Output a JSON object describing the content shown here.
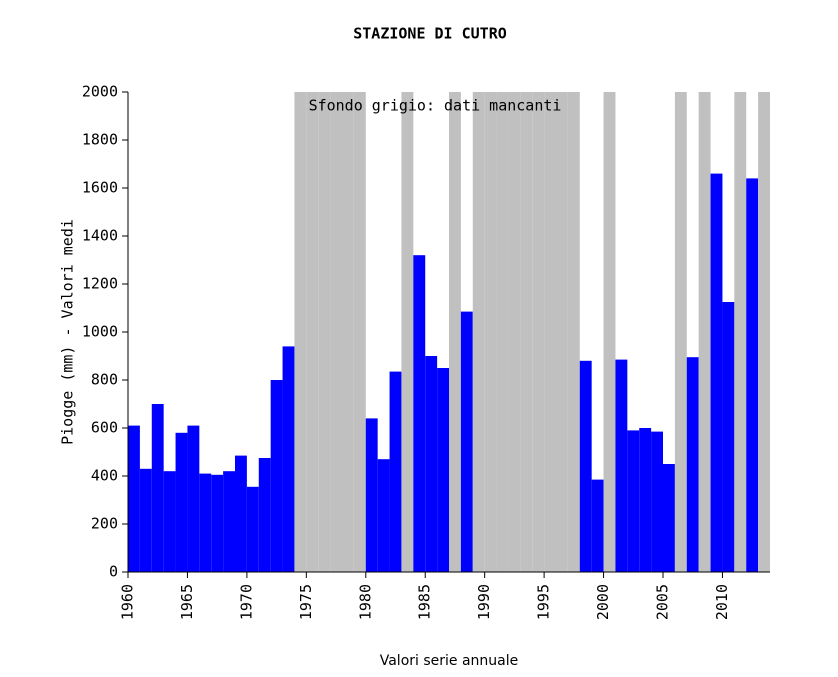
{
  "chart_data": {
    "type": "bar",
    "title": "STAZIONE DI CUTRO",
    "annotation": "Sfondo grigio: dati mancanti",
    "y_label": "Piogge (mm) - Valori medi",
    "x_label": "Valori serie annuale",
    "x": [
      1960,
      1961,
      1962,
      1963,
      1964,
      1965,
      1966,
      1967,
      1968,
      1969,
      1970,
      1971,
      1972,
      1973,
      1974,
      1975,
      1976,
      1977,
      1978,
      1979,
      1980,
      1981,
      1982,
      1983,
      1984,
      1985,
      1986,
      1987,
      1988,
      1989,
      1990,
      1991,
      1992,
      1993,
      1994,
      1995,
      1996,
      1997,
      1998,
      1999,
      2000,
      2001,
      2002,
      2003,
      2004,
      2005,
      2006,
      2007,
      2008,
      2009,
      2010,
      2011,
      2012,
      2013
    ],
    "values": [
      610,
      430,
      700,
      420,
      580,
      610,
      410,
      405,
      420,
      485,
      355,
      475,
      800,
      940,
      null,
      null,
      null,
      null,
      null,
      null,
      640,
      470,
      835,
      null,
      1320,
      900,
      850,
      null,
      1085,
      null,
      null,
      null,
      null,
      null,
      null,
      null,
      null,
      null,
      880,
      385,
      null,
      885,
      590,
      600,
      585,
      450,
      null,
      895,
      null,
      1660,
      1125,
      null,
      1640,
      null
    ],
    "color": "#0000ff",
    "missing_color": "#c0c0c0",
    "xlim": [
      1960,
      2014
    ],
    "xticks": [
      1960,
      1965,
      1970,
      1975,
      1980,
      1985,
      1990,
      1995,
      2000,
      2005,
      2010
    ],
    "ylim": [
      0,
      2000
    ],
    "yticks": [
      0,
      200,
      400,
      600,
      800,
      1000,
      1200,
      1400,
      1600,
      1800,
      2000
    ]
  }
}
